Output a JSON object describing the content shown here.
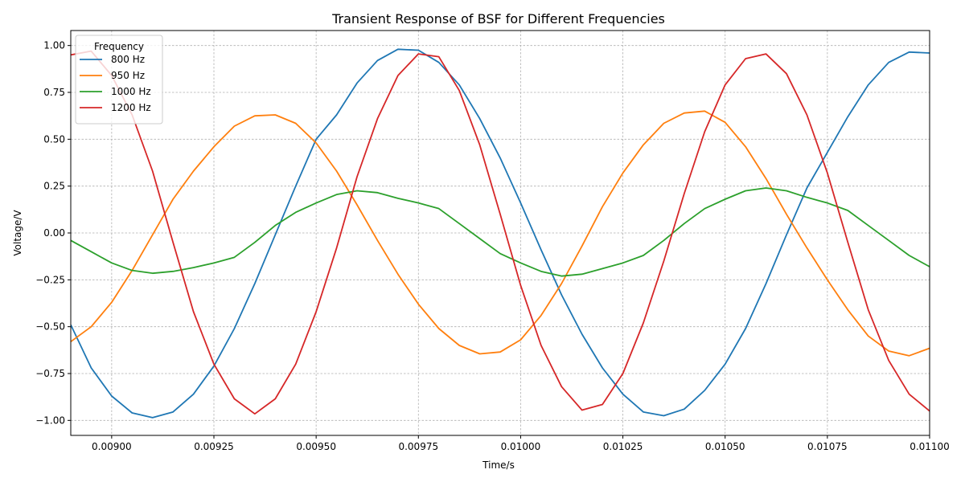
{
  "chart_data": {
    "type": "line",
    "title": "Transient Response of BSF for Different Frequencies",
    "xlabel": "Time/s",
    "ylabel": "Voltage/V",
    "xlim": [
      0.0089,
      0.011
    ],
    "ylim": [
      -1.08,
      1.08
    ],
    "xticks": [
      0.009,
      0.00925,
      0.0095,
      0.00975,
      0.01,
      0.01025,
      0.0105,
      0.01075,
      0.011
    ],
    "xtick_labels": [
      "0.00900",
      "0.00925",
      "0.00950",
      "0.00975",
      "0.01000",
      "0.01025",
      "0.01050",
      "0.01075",
      "0.01100"
    ],
    "yticks": [
      -1.0,
      -0.75,
      -0.5,
      -0.25,
      0.0,
      0.25,
      0.5,
      0.75,
      1.0
    ],
    "ytick_labels": [
      "−1.00",
      "−0.75",
      "−0.50",
      "−0.25",
      "0.00",
      "0.25",
      "0.50",
      "0.75",
      "1.00"
    ],
    "grid": true,
    "legend": {
      "title": "Frequency",
      "placement": "top-left"
    },
    "series": [
      {
        "name": "800 Hz",
        "color": "#1f77b4",
        "points": [
          [
            0.0089,
            -0.49
          ],
          [
            0.00895,
            -0.72
          ],
          [
            0.009,
            -0.87
          ],
          [
            0.00905,
            -0.96
          ],
          [
            0.0091,
            -0.985
          ],
          [
            0.00915,
            -0.955
          ],
          [
            0.0092,
            -0.86
          ],
          [
            0.00925,
            -0.71
          ],
          [
            0.0093,
            -0.51
          ],
          [
            0.00935,
            -0.27
          ],
          [
            0.0094,
            -0.01
          ],
          [
            0.00945,
            0.25
          ],
          [
            0.0095,
            0.5
          ],
          [
            0.00955,
            0.63
          ],
          [
            0.0096,
            0.8
          ],
          [
            0.00965,
            0.92
          ],
          [
            0.0097,
            0.98
          ],
          [
            0.00975,
            0.975
          ],
          [
            0.0098,
            0.91
          ],
          [
            0.00985,
            0.79
          ],
          [
            0.0099,
            0.61
          ],
          [
            0.00995,
            0.4
          ],
          [
            0.01,
            0.16
          ],
          [
            0.01005,
            -0.09
          ],
          [
            0.0101,
            -0.33
          ],
          [
            0.01015,
            -0.54
          ],
          [
            0.0102,
            -0.72
          ],
          [
            0.01025,
            -0.86
          ],
          [
            0.0103,
            -0.955
          ],
          [
            0.01035,
            -0.975
          ],
          [
            0.0104,
            -0.94
          ],
          [
            0.01045,
            -0.84
          ],
          [
            0.0105,
            -0.7
          ],
          [
            0.01055,
            -0.51
          ],
          [
            0.0106,
            -0.27
          ],
          [
            0.01065,
            -0.01
          ],
          [
            0.0107,
            0.24
          ],
          [
            0.01075,
            0.43
          ],
          [
            0.0108,
            0.62
          ],
          [
            0.01085,
            0.79
          ],
          [
            0.0109,
            0.91
          ],
          [
            0.01095,
            0.965
          ],
          [
            0.011,
            0.96
          ]
        ]
      },
      {
        "name": "950 Hz",
        "color": "#ff7f0e",
        "points": [
          [
            0.0089,
            -0.58
          ],
          [
            0.00895,
            -0.5
          ],
          [
            0.009,
            -0.37
          ],
          [
            0.00905,
            -0.2
          ],
          [
            0.0091,
            -0.01
          ],
          [
            0.00915,
            0.18
          ],
          [
            0.0092,
            0.33
          ],
          [
            0.00925,
            0.46
          ],
          [
            0.0093,
            0.57
          ],
          [
            0.00935,
            0.625
          ],
          [
            0.0094,
            0.63
          ],
          [
            0.00945,
            0.585
          ],
          [
            0.0095,
            0.48
          ],
          [
            0.00955,
            0.33
          ],
          [
            0.0096,
            0.15
          ],
          [
            0.00965,
            -0.04
          ],
          [
            0.0097,
            -0.22
          ],
          [
            0.00975,
            -0.38
          ],
          [
            0.0098,
            -0.51
          ],
          [
            0.00985,
            -0.6
          ],
          [
            0.0099,
            -0.645
          ],
          [
            0.00995,
            -0.635
          ],
          [
            0.01,
            -0.57
          ],
          [
            0.01005,
            -0.44
          ],
          [
            0.0101,
            -0.27
          ],
          [
            0.01015,
            -0.07
          ],
          [
            0.0102,
            0.14
          ],
          [
            0.01025,
            0.32
          ],
          [
            0.0103,
            0.47
          ],
          [
            0.01035,
            0.585
          ],
          [
            0.0104,
            0.64
          ],
          [
            0.01045,
            0.65
          ],
          [
            0.0105,
            0.59
          ],
          [
            0.01055,
            0.46
          ],
          [
            0.0106,
            0.29
          ],
          [
            0.01065,
            0.1
          ],
          [
            0.0107,
            -0.08
          ],
          [
            0.01075,
            -0.25
          ],
          [
            0.0108,
            -0.41
          ],
          [
            0.01085,
            -0.55
          ],
          [
            0.0109,
            -0.63
          ],
          [
            0.01095,
            -0.655
          ],
          [
            0.011,
            -0.615
          ]
        ]
      },
      {
        "name": "1000 Hz",
        "color": "#2ca02c",
        "points": [
          [
            0.0089,
            -0.04
          ],
          [
            0.00895,
            -0.1
          ],
          [
            0.009,
            -0.16
          ],
          [
            0.00905,
            -0.2
          ],
          [
            0.0091,
            -0.215
          ],
          [
            0.00915,
            -0.205
          ],
          [
            0.0092,
            -0.185
          ],
          [
            0.00925,
            -0.16
          ],
          [
            0.0093,
            -0.13
          ],
          [
            0.00935,
            -0.05
          ],
          [
            0.0094,
            0.04
          ],
          [
            0.00945,
            0.11
          ],
          [
            0.0095,
            0.16
          ],
          [
            0.00955,
            0.205
          ],
          [
            0.0096,
            0.225
          ],
          [
            0.00965,
            0.215
          ],
          [
            0.0097,
            0.185
          ],
          [
            0.00975,
            0.16
          ],
          [
            0.0098,
            0.13
          ],
          [
            0.00985,
            0.05
          ],
          [
            0.0099,
            -0.03
          ],
          [
            0.00995,
            -0.11
          ],
          [
            0.01,
            -0.16
          ],
          [
            0.01005,
            -0.205
          ],
          [
            0.0101,
            -0.23
          ],
          [
            0.01015,
            -0.22
          ],
          [
            0.0102,
            -0.19
          ],
          [
            0.01025,
            -0.16
          ],
          [
            0.0103,
            -0.12
          ],
          [
            0.01035,
            -0.04
          ],
          [
            0.0104,
            0.05
          ],
          [
            0.01045,
            0.13
          ],
          [
            0.0105,
            0.18
          ],
          [
            0.01055,
            0.225
          ],
          [
            0.0106,
            0.24
          ],
          [
            0.01065,
            0.225
          ],
          [
            0.0107,
            0.19
          ],
          [
            0.01075,
            0.16
          ],
          [
            0.0108,
            0.12
          ],
          [
            0.01085,
            0.04
          ],
          [
            0.0109,
            -0.04
          ],
          [
            0.01095,
            -0.12
          ],
          [
            0.011,
            -0.18
          ]
        ]
      },
      {
        "name": "1200 Hz",
        "color": "#d62728",
        "points": [
          [
            0.0089,
            0.95
          ],
          [
            0.00895,
            0.97
          ],
          [
            0.009,
            0.84
          ],
          [
            0.00905,
            0.63
          ],
          [
            0.0091,
            0.33
          ],
          [
            0.00915,
            -0.05
          ],
          [
            0.0092,
            -0.42
          ],
          [
            0.00925,
            -0.7
          ],
          [
            0.0093,
            -0.885
          ],
          [
            0.00935,
            -0.965
          ],
          [
            0.0094,
            -0.885
          ],
          [
            0.00945,
            -0.7
          ],
          [
            0.0095,
            -0.42
          ],
          [
            0.00955,
            -0.08
          ],
          [
            0.0096,
            0.3
          ],
          [
            0.00965,
            0.61
          ],
          [
            0.0097,
            0.84
          ],
          [
            0.00975,
            0.955
          ],
          [
            0.0098,
            0.94
          ],
          [
            0.00985,
            0.76
          ],
          [
            0.0099,
            0.47
          ],
          [
            0.00995,
            0.1
          ],
          [
            0.01,
            -0.28
          ],
          [
            0.01005,
            -0.6
          ],
          [
            0.0101,
            -0.82
          ],
          [
            0.01015,
            -0.945
          ],
          [
            0.0102,
            -0.915
          ],
          [
            0.01025,
            -0.75
          ],
          [
            0.0103,
            -0.48
          ],
          [
            0.01035,
            -0.15
          ],
          [
            0.0104,
            0.21
          ],
          [
            0.01045,
            0.54
          ],
          [
            0.0105,
            0.79
          ],
          [
            0.01055,
            0.93
          ],
          [
            0.0106,
            0.955
          ],
          [
            0.01065,
            0.85
          ],
          [
            0.0107,
            0.63
          ],
          [
            0.01075,
            0.32
          ],
          [
            0.0108,
            -0.05
          ],
          [
            0.01085,
            -0.41
          ],
          [
            0.0109,
            -0.68
          ],
          [
            0.01095,
            -0.86
          ],
          [
            0.011,
            -0.95
          ]
        ]
      }
    ]
  }
}
